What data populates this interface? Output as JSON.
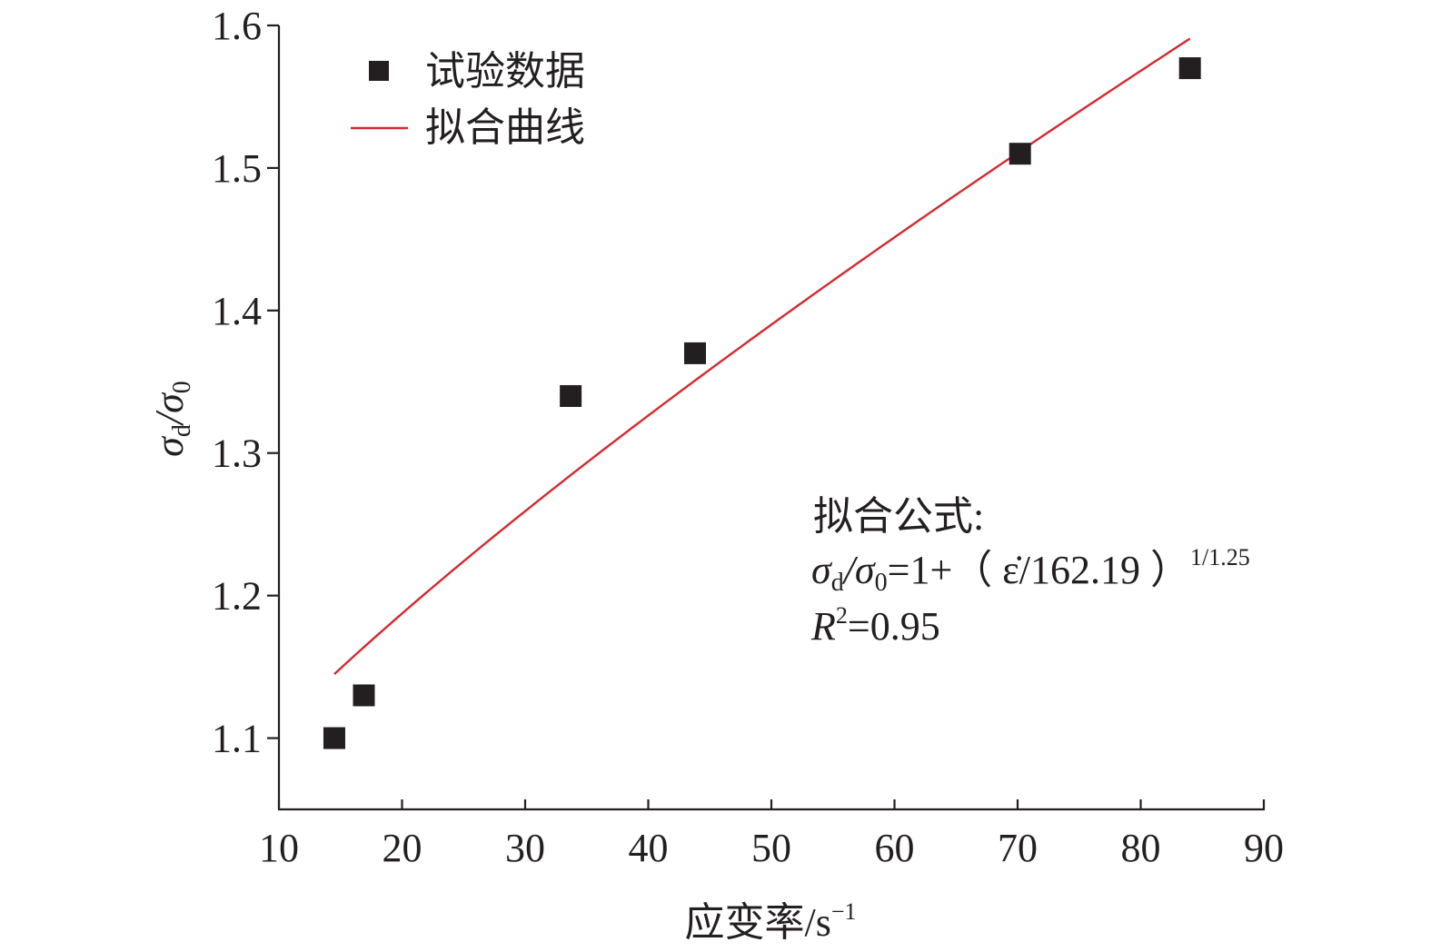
{
  "chart_data": {
    "type": "scatter",
    "xlabel": "应变率/s",
    "xlabel_sup": "−1",
    "ylabel": "σ",
    "ylabel_sub1": "d",
    "ylabel_mid": "/σ",
    "ylabel_sub2": "0",
    "xlim": [
      10,
      90
    ],
    "ylim": [
      1.05,
      1.6
    ],
    "x_ticks": [
      10,
      20,
      30,
      40,
      50,
      60,
      70,
      80,
      90
    ],
    "x_tick_labels": [
      "10",
      "20",
      "30",
      "40",
      "50",
      "60",
      "70",
      "80",
      "90"
    ],
    "y_ticks": [
      1.1,
      1.2,
      1.3,
      1.4,
      1.5,
      1.6
    ],
    "y_tick_labels": [
      "1.1",
      "1.2",
      "1.3",
      "1.4",
      "1.5",
      "1.6"
    ],
    "grid": false,
    "legend_position": "top-left",
    "series": [
      {
        "name": "试验数据",
        "kind": "scatter",
        "marker": "square",
        "color": "#231f20",
        "x": [
          14.5,
          16.9,
          33.7,
          43.8,
          70.2,
          84.0
        ],
        "y": [
          1.1,
          1.13,
          1.34,
          1.37,
          1.51,
          1.57
        ]
      },
      {
        "name": "拟合曲线",
        "kind": "line",
        "color": "#d7282f",
        "x_range": [
          14.5,
          84
        ],
        "formula_params": {
          "divisor": 162.19,
          "exponent": 0.8
        }
      }
    ],
    "annotation": {
      "heading": "拟合公式:",
      "formula_main": "σ",
      "formula_sub1": "d",
      "formula_mid": "/σ",
      "formula_sub2": "0",
      "formula_rest": "=1+（ ε̇/162.19 ）",
      "formula_exp": "1/1.25",
      "r2_label": "R",
      "r2_sup": "2",
      "r2_value": "=0.95"
    }
  }
}
